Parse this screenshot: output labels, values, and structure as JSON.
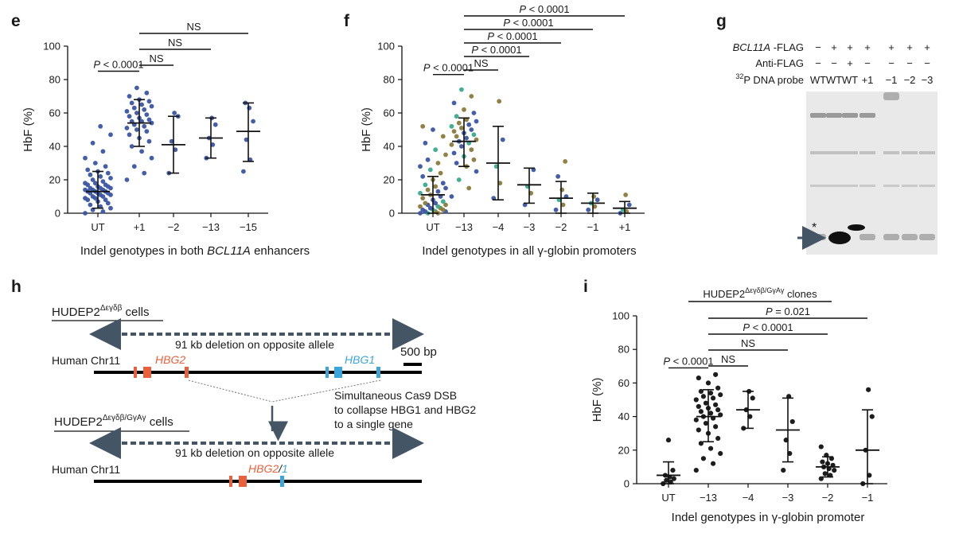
{
  "panel_labels": {
    "e": "e",
    "f": "f",
    "g": "g",
    "h": "h",
    "i": "i"
  },
  "colors": {
    "blue": "#3a55a4",
    "green": "#3aaa8c",
    "olive": "#8a7a3a",
    "orange": "#e8603c",
    "cyan": "#3aa6dc",
    "arrow": "#445566",
    "axis": "#111111"
  },
  "chart_data": [
    {
      "id": "e",
      "type": "scatter",
      "title": "",
      "ylabel": "HbF (%)",
      "xlabel_prefix": "Indel genotypes in both ",
      "xlabel_italic": "BCL11A",
      "xlabel_suffix": " enhancers",
      "ylim": [
        0,
        100
      ],
      "yticks": [
        "0",
        "20",
        "40",
        "60",
        "80",
        "100"
      ],
      "categories": [
        "UT",
        "+1",
        "−2",
        "−13",
        "−15"
      ],
      "means": [
        13,
        54,
        41,
        45,
        49
      ],
      "sd_low": [
        3,
        40,
        24,
        33,
        31
      ],
      "sd_high": [
        25,
        68,
        58,
        57,
        66
      ],
      "points": [
        [
          0,
          1,
          2,
          3,
          4,
          5,
          6,
          7,
          8,
          8,
          9,
          9,
          10,
          10,
          11,
          11,
          12,
          12,
          12,
          13,
          13,
          13,
          14,
          14,
          14,
          15,
          15,
          15,
          16,
          16,
          17,
          17,
          18,
          18,
          19,
          20,
          21,
          22,
          23,
          24,
          25,
          26,
          28,
          30,
          33,
          37,
          42,
          47,
          52
        ],
        [
          20,
          24,
          28,
          33,
          37,
          40,
          43,
          45,
          47,
          49,
          50,
          51,
          52,
          53,
          54,
          55,
          55,
          56,
          57,
          58,
          59,
          60,
          61,
          62,
          63,
          64,
          65,
          66,
          67,
          68,
          70,
          72,
          75
        ],
        [
          24,
          38,
          43,
          58,
          60
        ],
        [
          33,
          41,
          45,
          53,
          57
        ],
        [
          25,
          32,
          44,
          55,
          63,
          66
        ]
      ],
      "comparisons": [
        {
          "label": "P < 0.0001",
          "from": 0,
          "to": 1
        },
        {
          "label": "NS",
          "from": 1,
          "to": 2
        },
        {
          "label": "NS",
          "from": 1,
          "to": 3
        },
        {
          "label": "NS",
          "from": 1,
          "to": 4
        }
      ]
    },
    {
      "id": "f",
      "type": "scatter",
      "ylabel": "HbF (%)",
      "xlabel": "Indel genotypes in all γ-globin promoters",
      "ylim": [
        0,
        100
      ],
      "yticks": [
        "0",
        "20",
        "40",
        "60",
        "80",
        "100"
      ],
      "categories": [
        "UT",
        "−13",
        "−4",
        "−3",
        "−2",
        "−1",
        "+1"
      ],
      "means": [
        11,
        43,
        30,
        17,
        9,
        6,
        3
      ],
      "sd_low": [
        0,
        28,
        8,
        6,
        0,
        0,
        0
      ],
      "sd_high": [
        22,
        57,
        52,
        27,
        19,
        12,
        7
      ],
      "points": [
        [
          0,
          0,
          0,
          1,
          1,
          1,
          2,
          2,
          2,
          3,
          3,
          4,
          4,
          5,
          5,
          6,
          6,
          7,
          8,
          9,
          10,
          11,
          12,
          13,
          14,
          15,
          16,
          17,
          18,
          20,
          22,
          24,
          26,
          28,
          30,
          32,
          35,
          38,
          42,
          46,
          50,
          52
        ],
        [
          10,
          15,
          20,
          25,
          28,
          30,
          32,
          34,
          36,
          38,
          40,
          41,
          42,
          43,
          44,
          45,
          46,
          47,
          48,
          49,
          50,
          51,
          52,
          53,
          54,
          55,
          56,
          58,
          60,
          62,
          66,
          70,
          74
        ],
        [
          9,
          18,
          28,
          44,
          67
        ],
        [
          5,
          12,
          16,
          26
        ],
        [
          2,
          5,
          8,
          10,
          14,
          22,
          31
        ],
        [
          2,
          4,
          6,
          8,
          10
        ],
        [
          0,
          1,
          2,
          5,
          11
        ]
      ],
      "comparisons": [
        {
          "label": "P < 0.0001",
          "from": 0,
          "to": 1
        },
        {
          "label": "NS",
          "from": 1,
          "to": 2
        },
        {
          "label": "P < 0.0001",
          "from": 1,
          "to": 3
        },
        {
          "label": "P < 0.0001",
          "from": 1,
          "to": 4
        },
        {
          "label": "P < 0.0001",
          "from": 1,
          "to": 5
        },
        {
          "label": "P < 0.0001",
          "from": 1,
          "to": 6
        }
      ]
    },
    {
      "id": "i",
      "type": "scatter",
      "ylabel": "HbF (%)",
      "xlabel": "Indel genotypes in γ-globin promoter",
      "clone_label_prefix": "HUDEP2",
      "clone_label_sup": "Δεγδβ/GγAγ",
      "clone_label_suffix": " clones",
      "ylim": [
        0,
        100
      ],
      "yticks": [
        "0",
        "20",
        "40",
        "60",
        "80",
        "100"
      ],
      "categories": [
        "UT",
        "−13",
        "−4",
        "−3",
        "−2",
        "−1"
      ],
      "means": [
        5,
        40,
        44,
        32,
        10,
        20
      ],
      "sd_low": [
        0,
        25,
        33,
        13,
        4,
        0
      ],
      "sd_high": [
        13,
        56,
        55,
        51,
        16,
        44
      ],
      "points": [
        [
          0,
          1,
          2,
          3,
          4,
          5,
          8,
          26
        ],
        [
          8,
          12,
          15,
          18,
          21,
          24,
          27,
          30,
          32,
          34,
          36,
          38,
          39,
          40,
          41,
          42,
          43,
          44,
          45,
          46,
          47,
          48,
          50,
          51,
          52,
          53,
          54,
          55,
          57,
          60,
          63,
          65
        ],
        [
          33,
          40,
          44,
          51,
          55
        ],
        [
          8,
          18,
          26,
          37,
          52
        ],
        [
          3,
          5,
          6,
          8,
          9,
          10,
          11,
          12,
          13,
          15,
          17,
          22
        ],
        [
          0,
          5,
          20,
          40,
          56
        ]
      ],
      "comparisons": [
        {
          "label": "P < 0.0001",
          "from": 0,
          "to": 1
        },
        {
          "label": "NS",
          "from": 1,
          "to": 2
        },
        {
          "label": "NS",
          "from": 1,
          "to": 3
        },
        {
          "label": "P < 0.0001",
          "from": 1,
          "to": 4
        },
        {
          "label": "P = 0.021",
          "from": 1,
          "to": 5
        }
      ]
    }
  ],
  "gel": {
    "rows": [
      {
        "label_italic": "BCL11A",
        "label": " -FLAG",
        "values": [
          "−",
          "+",
          "+",
          "+",
          "+",
          "+",
          "+"
        ]
      },
      {
        "label": "Anti-FLAG",
        "values": [
          "−",
          "−",
          "+",
          "−",
          "−",
          "−",
          "−"
        ]
      },
      {
        "label_sup": "32",
        "label": "P DNA probe",
        "values": [
          "WT",
          "WT",
          "WT",
          "+1",
          "−1",
          "−2",
          "−3"
        ]
      }
    ],
    "star": "*"
  },
  "diagram": {
    "cells1_prefix": "HUDEP2",
    "cells1_sup": "Δεγδβ",
    "cells1_suffix": " cells",
    "deletion_label": "91 kb deletion on opposite allele",
    "chr_label": "Human Chr11",
    "hbg2": "HBG2",
    "hbg1": "HBG1",
    "scale": "500 bp",
    "cas9_line1": "Simultaneous Cas9 DSB",
    "cas9_line2": "to collapse HBG1 and HBG2",
    "cas9_line3": "to a single gene",
    "cells2_prefix": "HUDEP2",
    "cells2_sup": "Δεγδβ/GγAγ",
    "cells2_suffix": " cells",
    "deletion_label2": "91 kb deletion on opposite allele",
    "chr_label2": "Human Chr11",
    "merged_a": "HBG2",
    "merged_sep": "/",
    "merged_b": "1"
  }
}
